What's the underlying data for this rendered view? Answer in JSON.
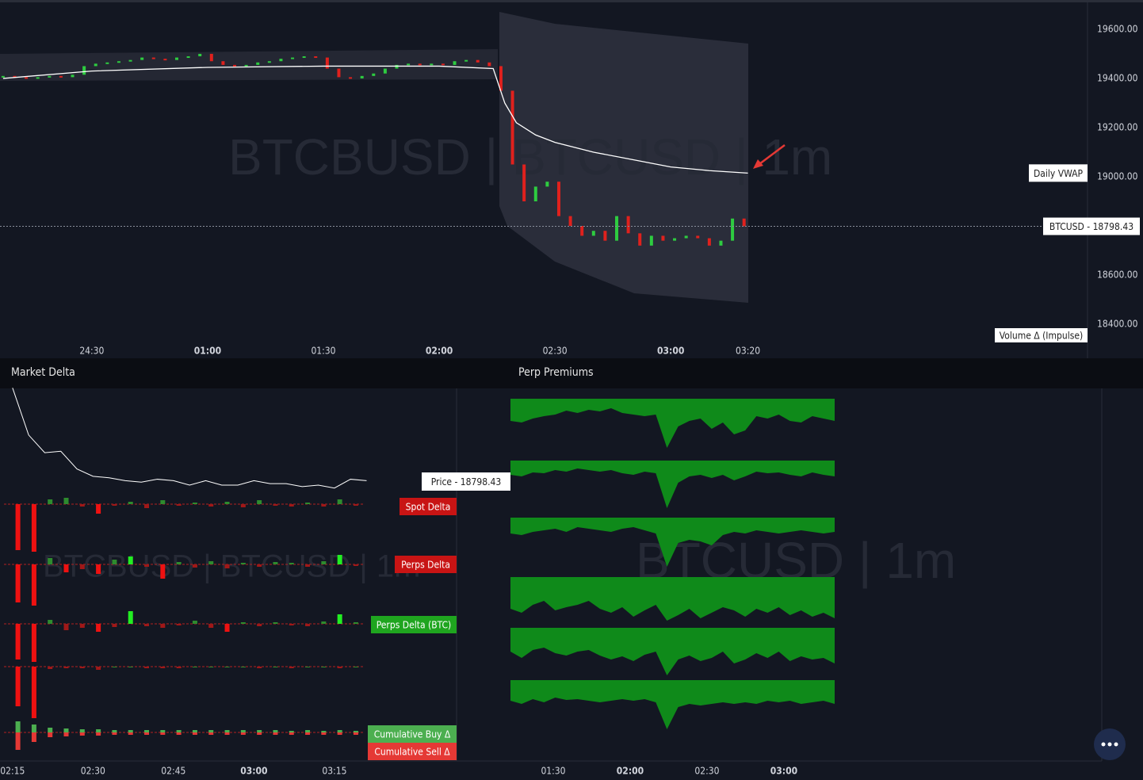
{
  "price_chart": {
    "watermark": "BTCBUSD  |  BTCUSD  |  1m",
    "xlim": [
      6.2,
      288
    ],
    "ylim": [
      18339,
      19719
    ],
    "yticks": [
      {
        "value": 19600,
        "label": "19600.00"
      },
      {
        "value": 19400,
        "label": "19400.00"
      },
      {
        "value": 19200,
        "label": "19200.00"
      },
      {
        "value": 19000,
        "label": "19000.00"
      },
      {
        "value": 18600,
        "label": "18600.00"
      },
      {
        "value": 18400,
        "label": "18400.00"
      }
    ],
    "xticks": [
      {
        "value": 30,
        "label": "24:30"
      },
      {
        "value": 60,
        "label": "01:00",
        "bold": true
      },
      {
        "value": 90,
        "label": "01:30"
      },
      {
        "value": 120,
        "label": "02:00",
        "bold": true
      },
      {
        "value": 150,
        "label": "02:30"
      },
      {
        "value": 180,
        "label": "03:00",
        "bold": true
      },
      {
        "value": 200,
        "label": "03:20"
      }
    ],
    "x": [
      7,
      10,
      13,
      16,
      19,
      22,
      25,
      28,
      31,
      34,
      37,
      40,
      43,
      46,
      49,
      52,
      55,
      58,
      61,
      64,
      67,
      70,
      73,
      76,
      79,
      82,
      85,
      88,
      91,
      94,
      97,
      100,
      103,
      106,
      109,
      112,
      115,
      118,
      121,
      124,
      127,
      130,
      133,
      136,
      139,
      142,
      145,
      148,
      151,
      154,
      157,
      160,
      163,
      166,
      169,
      172,
      175,
      178,
      181,
      184,
      187,
      190,
      193,
      196,
      199
    ],
    "closes": [
      19410,
      19405,
      19400,
      19405,
      19410,
      19405,
      19415,
      19450,
      19460,
      19465,
      19470,
      19475,
      19485,
      19480,
      19475,
      19485,
      19490,
      19500,
      19470,
      19455,
      19450,
      19455,
      19465,
      19470,
      19480,
      19485,
      19490,
      19485,
      19440,
      19405,
      19400,
      19410,
      19420,
      19440,
      19455,
      19460,
      19455,
      19460,
      19455,
      19470,
      19475,
      19465,
      19450,
      19350,
      19050,
      18900,
      18960,
      18980,
      18840,
      18800,
      18760,
      18780,
      18740,
      18840,
      18770,
      18720,
      18760,
      18740,
      18750,
      18760,
      18750,
      18720,
      18740,
      18830,
      18798.43
    ],
    "vwap": {
      "name": "Daily VWAP",
      "x": [
        7,
        30,
        60,
        90,
        120,
        134,
        137,
        140,
        145,
        150,
        160,
        170,
        180,
        190,
        200
      ],
      "values": [
        19400,
        19430,
        19445,
        19450,
        19450,
        19440,
        19300,
        19220,
        19170,
        19140,
        19100,
        19070,
        19040,
        19025,
        19015
      ]
    },
    "last_price_label": "BTCUSD  -  18798.43",
    "last_price": 18798.43,
    "volume_label": "Volume Δ (Impulse)"
  },
  "market_delta": {
    "title": "Market Delta",
    "watermark": "BTCBUSD  |  BTCUSD  |  1m",
    "xlim": [
      133.4,
      219.1
    ],
    "xticks": [
      {
        "value": 135,
        "label": "02:15"
      },
      {
        "value": 150,
        "label": "02:30"
      },
      {
        "value": 165,
        "label": "02:45"
      },
      {
        "value": 180,
        "label": "03:00",
        "bold": true
      },
      {
        "value": 195,
        "label": "03:15"
      }
    ],
    "price": {
      "label": "Price  -  18798.43",
      "ylim": [
        18717,
        19400
      ],
      "x": [
        135,
        138,
        141,
        144,
        147,
        150,
        153,
        156,
        159,
        162,
        165,
        168,
        171,
        174,
        177,
        180,
        183,
        186,
        189,
        192,
        195,
        198,
        201
      ],
      "values": [
        19420,
        19100,
        18980,
        18990,
        18870,
        18820,
        18810,
        18790,
        18780,
        18800,
        18790,
        18760,
        18790,
        18760,
        18760,
        18790,
        18770,
        18770,
        18750,
        18760,
        18740,
        18800,
        18790
      ]
    },
    "bar_x": [
      136,
      139,
      142,
      145,
      148,
      151,
      154,
      157,
      160,
      163,
      166,
      169,
      172,
      175,
      178,
      181,
      184,
      187,
      190,
      193,
      196,
      199
    ],
    "rows": [
      {
        "name": "Spot Delta",
        "color": "#c81414",
        "values": [
          -58,
          -60,
          6,
          8,
          -3,
          -12,
          -2,
          3,
          -5,
          5,
          -2,
          2,
          -3,
          3,
          -4,
          5,
          -2,
          -3,
          2,
          -3,
          6,
          -2
        ]
      },
      {
        "name": "Perps Delta",
        "color": "#c81414",
        "values": [
          -48,
          -52,
          8,
          -10,
          -6,
          -12,
          6,
          10,
          -3,
          -18,
          3,
          -4,
          4,
          -5,
          2,
          -3,
          3,
          2,
          -3,
          4,
          12,
          -2
        ]
      },
      {
        "name": "Perps Delta (BTC)",
        "color": "#1fa51f",
        "values": [
          -45,
          -48,
          5,
          -8,
          -5,
          -10,
          -4,
          16,
          -3,
          -5,
          -2,
          4,
          -5,
          -10,
          2,
          -3,
          2,
          -2,
          -3,
          3,
          12,
          2
        ]
      },
      {
        "values": [
          -50,
          -65,
          -3,
          -2,
          -2,
          -4,
          0,
          0,
          -2,
          -2,
          -2,
          0,
          0,
          0,
          0,
          -2,
          0,
          -2,
          0,
          0,
          -2,
          0
        ]
      },
      {
        "name": "Cumulative Buy Δ",
        "color": "#4caf50",
        "values": [
          14,
          10,
          6,
          5,
          4,
          4,
          3,
          3,
          3,
          3,
          3,
          3,
          3,
          3,
          3,
          3,
          3,
          2,
          3,
          2,
          3,
          2
        ]
      },
      {
        "name": "Cumulative Sell Δ",
        "color": "#e53935",
        "values": [
          -22,
          -12,
          -6,
          -5,
          -4,
          -4,
          -3,
          -3,
          -3,
          -3,
          -3,
          -3,
          -3,
          -3,
          -3,
          -3,
          -3,
          -3,
          -3,
          -3,
          -3,
          -3
        ]
      }
    ]
  },
  "perp_premiums": {
    "title": "Perp Premiums",
    "watermark": "BTCUSD  |  1m",
    "xlim": [
      73.3,
      199.8
    ],
    "xticks": [
      {
        "value": 90,
        "label": "01:30"
      },
      {
        "value": 120,
        "label": "02:00",
        "bold": true
      },
      {
        "value": 150,
        "label": "02:30"
      },
      {
        "value": 180,
        "label": "03:00",
        "bold": true
      }
    ],
    "rows": [
      [
        28,
        30,
        25,
        22,
        20,
        15,
        18,
        14,
        16,
        12,
        18,
        20,
        22,
        20,
        62,
        35,
        28,
        25,
        38,
        30,
        45,
        40,
        22,
        25,
        20,
        28,
        30,
        22,
        25,
        28
      ],
      [
        18,
        20,
        15,
        16,
        12,
        14,
        10,
        12,
        14,
        12,
        16,
        18,
        14,
        16,
        60,
        28,
        20,
        18,
        22,
        18,
        25,
        20,
        14,
        16,
        15,
        18,
        20,
        15,
        18,
        20
      ],
      [
        20,
        22,
        18,
        16,
        14,
        18,
        12,
        14,
        16,
        18,
        14,
        12,
        16,
        20,
        62,
        32,
        28,
        30,
        35,
        22,
        18,
        20,
        16,
        18,
        20,
        18,
        16,
        18,
        20,
        18
      ],
      [
        40,
        45,
        35,
        30,
        42,
        38,
        35,
        30,
        40,
        45,
        38,
        50,
        42,
        35,
        55,
        48,
        40,
        52,
        45,
        38,
        42,
        50,
        40,
        45,
        38,
        48,
        42,
        50,
        45,
        52
      ],
      [
        30,
        38,
        28,
        25,
        32,
        35,
        30,
        28,
        35,
        40,
        36,
        42,
        34,
        30,
        60,
        40,
        35,
        42,
        38,
        30,
        45,
        40,
        32,
        38,
        30,
        42,
        36,
        40,
        38,
        45
      ],
      [
        26,
        30,
        24,
        28,
        22,
        25,
        24,
        26,
        28,
        26,
        24,
        26,
        24,
        28,
        62,
        34,
        30,
        32,
        30,
        28,
        30,
        28,
        30,
        26,
        28,
        26,
        30,
        28,
        26,
        30
      ]
    ]
  }
}
